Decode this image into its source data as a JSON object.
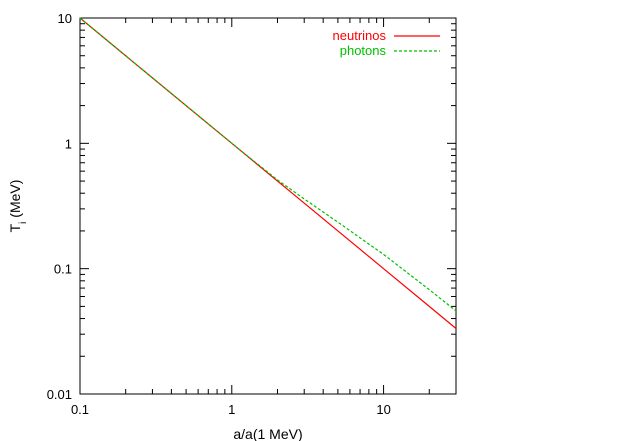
{
  "chart_data": {
    "type": "line",
    "xlabel": "a/a(1 MeV)",
    "ylabel_main": "T",
    "ylabel_sub": "i",
    "ylabel_unit": " (MeV)",
    "xscale": "log",
    "yscale": "log",
    "xlim": [
      0.1,
      30
    ],
    "ylim": [
      0.01,
      10
    ],
    "xticks": [
      {
        "v": 0.1,
        "label": "0.1"
      },
      {
        "v": 1,
        "label": "1"
      },
      {
        "v": 10,
        "label": "10"
      }
    ],
    "yticks": [
      {
        "v": 0.01,
        "label": "0.01"
      },
      {
        "v": 0.1,
        "label": "0.1"
      },
      {
        "v": 1,
        "label": "1"
      },
      {
        "v": 10,
        "label": "10"
      }
    ],
    "grid": false,
    "legend_position": "top-right",
    "series": [
      {
        "name": "neutrinos",
        "color": "#ff0000",
        "dash": "solid",
        "points": [
          [
            0.1,
            10.0
          ],
          [
            0.3,
            3.33
          ],
          [
            1,
            1.0
          ],
          [
            2.5,
            0.4
          ],
          [
            5,
            0.2
          ],
          [
            10,
            0.1
          ],
          [
            20,
            0.05
          ],
          [
            30,
            0.0333
          ]
        ]
      },
      {
        "name": "photons",
        "color": "#00c000",
        "dash": "dashed",
        "points": [
          [
            0.1,
            10.0
          ],
          [
            0.3,
            3.33
          ],
          [
            1,
            1.0
          ],
          [
            2,
            0.51
          ],
          [
            3,
            0.36
          ],
          [
            5,
            0.235
          ],
          [
            10,
            0.13
          ],
          [
            20,
            0.068
          ],
          [
            30,
            0.046
          ]
        ]
      }
    ]
  }
}
